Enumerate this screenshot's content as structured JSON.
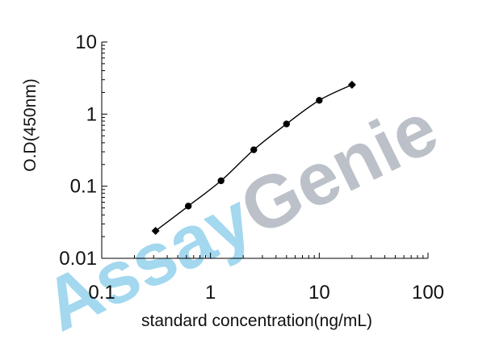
{
  "watermark": {
    "part1": "Assay",
    "part2": "Genie",
    "color1": "#9fd6ef",
    "color2": "#b9bec7"
  },
  "chart_data": {
    "type": "line",
    "title": "",
    "xlabel": "standard concentration(ng/mL)",
    "ylabel": "O.D(450nm)",
    "xscale": "log",
    "yscale": "log",
    "xlim": [
      0.1,
      100
    ],
    "ylim": [
      0.01,
      10
    ],
    "x_ticks": [
      0.1,
      1,
      10,
      100
    ],
    "x_tick_labels": [
      "0.1",
      "1",
      "10",
      "100"
    ],
    "y_ticks": [
      0.01,
      0.1,
      1,
      10
    ],
    "y_tick_labels": [
      "0.01",
      "0.1",
      "1",
      "10"
    ],
    "grid": false,
    "line_color": "#000000",
    "series": [
      {
        "x": [
          0.3125,
          0.625,
          1.25,
          2.5,
          5,
          10,
          20
        ],
        "y": [
          0.024,
          0.053,
          0.119,
          0.32,
          0.73,
          1.55,
          2.55
        ],
        "markers": [
          "diamond",
          "circle",
          "circle",
          "circle",
          "circle",
          "circle",
          "diamond"
        ]
      }
    ]
  }
}
